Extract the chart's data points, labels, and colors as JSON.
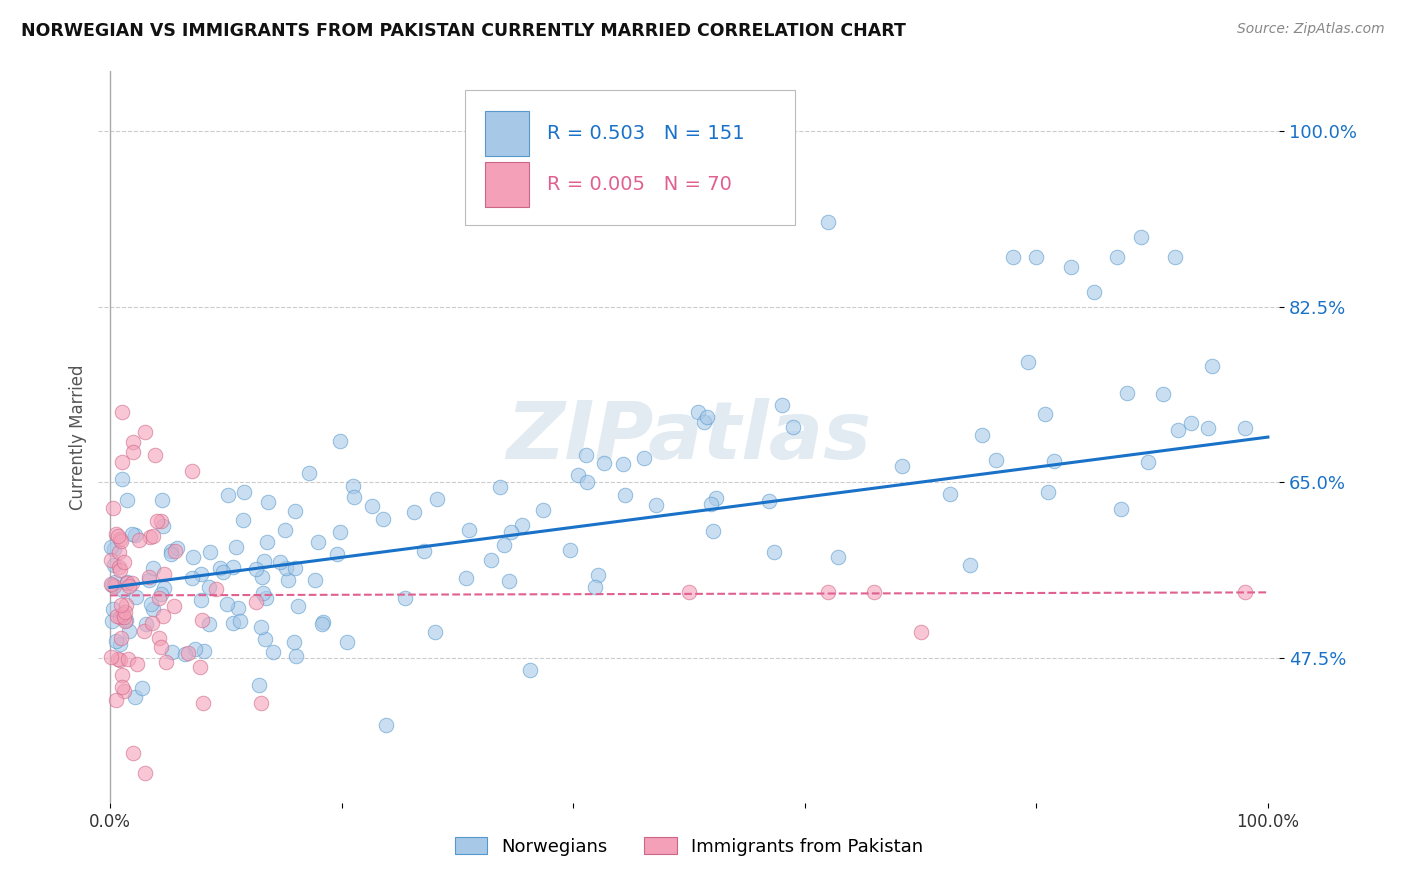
{
  "title": "NORWEGIAN VS IMMIGRANTS FROM PAKISTAN CURRENTLY MARRIED CORRELATION CHART",
  "source": "Source: ZipAtlas.com",
  "ylabel": "Currently Married",
  "legend_label1": "Norwegians",
  "legend_label2": "Immigrants from Pakistan",
  "r1": 0.503,
  "n1": 151,
  "r2": 0.005,
  "n2": 70,
  "color1": "#a8c8e8",
  "color2": "#f4a0b8",
  "line1_color": "#1a72c8",
  "line2_color": "#e06090",
  "edge1_color": "#5599cc",
  "edge2_color": "#cc6688",
  "xlim": [
    -0.01,
    1.01
  ],
  "ylim": [
    0.33,
    1.06
  ],
  "yticks": [
    0.475,
    0.65,
    0.825,
    1.0
  ],
  "ytick_labels": [
    "47.5%",
    "65.0%",
    "82.5%",
    "100.0%"
  ],
  "background_color": "#ffffff",
  "watermark": "ZIPatlas",
  "line1_y0": 0.545,
  "line1_y1": 0.695,
  "line2_y0": 0.537,
  "line2_y1": 0.54
}
